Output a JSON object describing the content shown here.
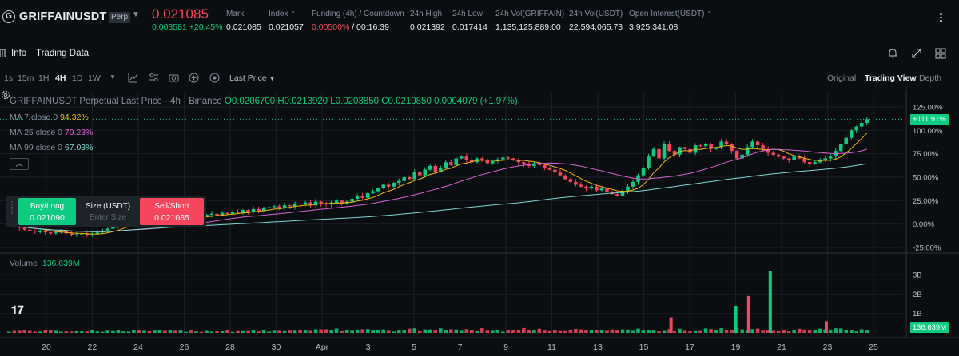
{
  "ticker": {
    "logo_letter": "G",
    "symbol": "GRIFFAINUSDT",
    "badge": "Perp",
    "price": "0.021085",
    "change_abs": "0.003581",
    "change_pct": "+20.45%",
    "stats": [
      {
        "label": "Mark",
        "value": "0.021085"
      },
      {
        "label": "Index",
        "value": "0.021057"
      },
      {
        "label": "Funding (4h) / Countdown",
        "value_red": "0.00500%",
        "value": "/ 00:16:39"
      },
      {
        "label": "24h High",
        "value": "0.021392"
      },
      {
        "label": "24h Low",
        "value": "0.017414"
      },
      {
        "label": "24h Vol(GRIFFAIN)",
        "value": "1,135,125,889.00"
      },
      {
        "label": "24h Vol(USDT)",
        "value": "22,594,065.73"
      },
      {
        "label": "Open Interest(USDT)",
        "value": "3,925,341.08"
      }
    ]
  },
  "subtabs": {
    "info": "Info",
    "trading_data": "Trading Data"
  },
  "toolbar": {
    "timeframes": [
      "1s",
      "15m",
      "1H",
      "4H",
      "1D",
      "1W"
    ],
    "active_timeframe": "4H",
    "price_source": "Last Price",
    "views": [
      "Original",
      "Trading View",
      "Depth"
    ],
    "active_view": "Trading View"
  },
  "legend": {
    "title": "GRIFFAINUSDT Perpetual Last Price · 4h · Binance",
    "ohlc": "O0.0206700 H0.0213920 L0.0203850 C0.0210850 0.0004079 (+1.97%)",
    "ma7_label": "MA 7 close 0",
    "ma7_value": "94.32%",
    "ma7_color": "#f0b90b",
    "ma25_label": "MA 25 close 0",
    "ma25_value": "79.23%",
    "ma25_color": "#d662d0",
    "ma99_label": "MA 99 close 0",
    "ma99_value": "67.03%",
    "ma99_color": "#7ed6d0",
    "volume_label": "Volume",
    "volume_value": "136.639M"
  },
  "order": {
    "buy_label": "Buy/Long",
    "buy_price": "0.021090",
    "size_label": "Size (USDT)",
    "size_placeholder": "Enter Size",
    "sell_label": "Sell/Short",
    "sell_price": "0.021085"
  },
  "price_axis": {
    "ticks": [
      "125.00%",
      "100.00%",
      "75.00%",
      "50.00%",
      "25.00%",
      "0.00%",
      "-25.00%"
    ],
    "current_tag": "+111.91%"
  },
  "volume_axis": {
    "ticks": [
      "3B",
      "2B",
      "1B"
    ],
    "current_tag": "136.639M"
  },
  "time_axis": [
    "20",
    "22",
    "24",
    "26",
    "28",
    "30",
    "Apr",
    "3",
    "5",
    "7",
    "9",
    "11",
    "13",
    "15",
    "17",
    "19",
    "21",
    "23",
    "25"
  ],
  "colors": {
    "up": "#0ecb81",
    "down": "#f6465d"
  },
  "chart_data": {
    "type": "candlestick",
    "x_axis_labels": [
      "20",
      "22",
      "24",
      "26",
      "28",
      "30",
      "Apr",
      "3",
      "5",
      "7",
      "9",
      "11",
      "13",
      "15",
      "17",
      "19",
      "21",
      "23",
      "25"
    ],
    "y_axis_unit": "percent",
    "ylim": [
      -25,
      125
    ],
    "closes_pct": [
      0,
      -3,
      -4,
      -6,
      -7,
      -8,
      -8,
      -9,
      -10,
      -9,
      -8,
      -10,
      -12,
      -11,
      -10,
      -12,
      -11,
      -9,
      -7,
      -5,
      -3,
      0,
      2,
      4,
      5,
      3,
      6,
      4,
      5,
      7,
      5,
      8,
      6,
      6,
      8,
      7,
      9,
      8,
      10,
      11,
      9,
      12,
      11,
      13,
      12,
      15,
      13,
      16,
      14,
      17,
      18,
      19,
      17,
      20,
      19,
      22,
      21,
      23,
      20,
      24,
      22,
      21,
      23,
      25,
      22,
      24,
      27,
      30,
      28,
      33,
      35,
      38,
      42,
      40,
      44,
      46,
      50,
      48,
      55,
      52,
      58,
      62,
      56,
      60,
      66,
      63,
      70,
      72,
      68,
      66,
      70,
      68,
      65,
      67,
      69,
      71,
      70,
      68,
      66,
      64,
      62,
      65,
      63,
      60,
      58,
      55,
      52,
      48,
      45,
      42,
      40,
      38,
      40,
      36,
      38,
      34,
      32,
      30,
      35,
      40,
      45,
      52,
      60,
      72,
      80,
      70,
      85,
      78,
      74,
      82,
      80,
      76,
      84,
      83,
      85,
      80,
      82,
      88,
      85,
      78,
      70,
      74,
      82,
      88,
      84,
      80,
      76,
      74,
      72,
      70,
      68,
      72,
      70,
      66,
      64,
      66,
      68,
      70,
      72,
      78,
      85,
      92,
      100,
      104,
      108,
      112
    ],
    "ma_series": [
      {
        "name": "MA 7 close 0",
        "last": 94.32
      },
      {
        "name": "MA 25 close 0",
        "last": 79.23
      },
      {
        "name": "MA 99 close 0",
        "last": 67.03
      }
    ],
    "volume_ylim": [
      0,
      3.5
    ],
    "volume_unit": "B",
    "volume_spikes_B": [
      {
        "label_near": "17",
        "value": 0.8
      },
      {
        "label_near": "19",
        "value": 1.4
      },
      {
        "label_near": "20",
        "value": 1.9
      },
      {
        "label_near": "21",
        "value": 3.2
      },
      {
        "label_near": "23",
        "value": 0.6
      }
    ]
  }
}
